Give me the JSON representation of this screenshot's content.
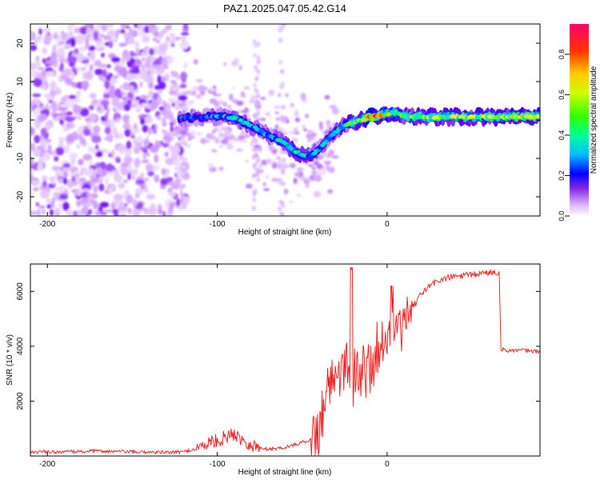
{
  "title": "PAZ1.2025.047.05.42.G14",
  "chart_data": [
    {
      "type": "heatmap",
      "xlabel": "Height of straight line (km)",
      "ylabel": "Frequency (Hz)",
      "xlim": [
        -210,
        90
      ],
      "ylim": [
        -25,
        25
      ],
      "xticks": [
        -200,
        -100,
        0
      ],
      "yticks": [
        -20,
        -10,
        0,
        10,
        20
      ],
      "colorbar": {
        "label": "Normalized spectral amplitude",
        "range": [
          0,
          0.95
        ],
        "ticks": [
          0.0,
          0.2,
          0.4,
          0.6,
          0.8
        ],
        "colors": [
          "#ffffff",
          "#cf9bff",
          "#6a00ff",
          "#0000ff",
          "#00c8ff",
          "#00ff80",
          "#80ff00",
          "#ffff00",
          "#ff9900",
          "#ff0000",
          "#ff0066"
        ]
      },
      "ridge": {
        "height_km": [
          -120,
          -110,
          -100,
          -90,
          -80,
          -70,
          -60,
          -55,
          -50,
          -45,
          -40,
          -35,
          -30,
          -25,
          -20,
          -15,
          -10,
          -5,
          0,
          5,
          10,
          20,
          40,
          60,
          90
        ],
        "freq_hz": [
          0.5,
          0.8,
          1.0,
          0.5,
          -1.5,
          -4.0,
          -6.0,
          -8.0,
          -9.0,
          -9.5,
          -7.5,
          -5.0,
          -3.0,
          -1.5,
          -0.5,
          0.0,
          0.8,
          1.0,
          1.5,
          2.0,
          1.0,
          0.8,
          0.8,
          0.8,
          0.8
        ],
        "amplitude": [
          0.3,
          0.3,
          0.35,
          0.4,
          0.35,
          0.35,
          0.4,
          0.45,
          0.4,
          0.35,
          0.35,
          0.35,
          0.4,
          0.45,
          0.5,
          0.6,
          0.7,
          0.7,
          0.6,
          0.55,
          0.5,
          0.55,
          0.55,
          0.55,
          0.6
        ]
      }
    },
    {
      "type": "line",
      "xlabel": "Height of straight line (km)",
      "ylabel": "SNR (10 * v/v)",
      "xlim": [
        -210,
        90
      ],
      "ylim": [
        0,
        7000
      ],
      "xticks": [
        -200,
        -100,
        0
      ],
      "yticks": [
        2000,
        4000,
        6000
      ],
      "color": "#ff0000",
      "series": [
        {
          "x": [
            -210,
            -190,
            -170,
            -150,
            -130,
            -120,
            -110,
            -105,
            -100,
            -95,
            -90,
            -85,
            -80,
            -75,
            -70,
            -65,
            -60,
            -55,
            -50,
            -45,
            -40,
            -37,
            -35,
            -32,
            -30,
            -27,
            -25,
            -22,
            -20,
            -17,
            -15,
            -12,
            -10,
            -7,
            -5,
            -2,
            0,
            3,
            5,
            8,
            10,
            15,
            20,
            25,
            30,
            40,
            50,
            60,
            66,
            67,
            70,
            80,
            90
          ],
          "y": [
            150,
            150,
            180,
            150,
            130,
            150,
            300,
            500,
            550,
            700,
            800,
            600,
            400,
            300,
            250,
            280,
            320,
            400,
            500,
            600,
            900,
            2000,
            2500,
            3000,
            2800,
            3300,
            3500,
            3200,
            2800,
            3000,
            3200,
            3000,
            3300,
            3600,
            4000,
            4200,
            4300,
            4600,
            4700,
            4500,
            4800,
            5400,
            5900,
            6200,
            6400,
            6550,
            6600,
            6700,
            6700,
            3900,
            3850,
            3850,
            3800
          ]
        }
      ]
    }
  ]
}
